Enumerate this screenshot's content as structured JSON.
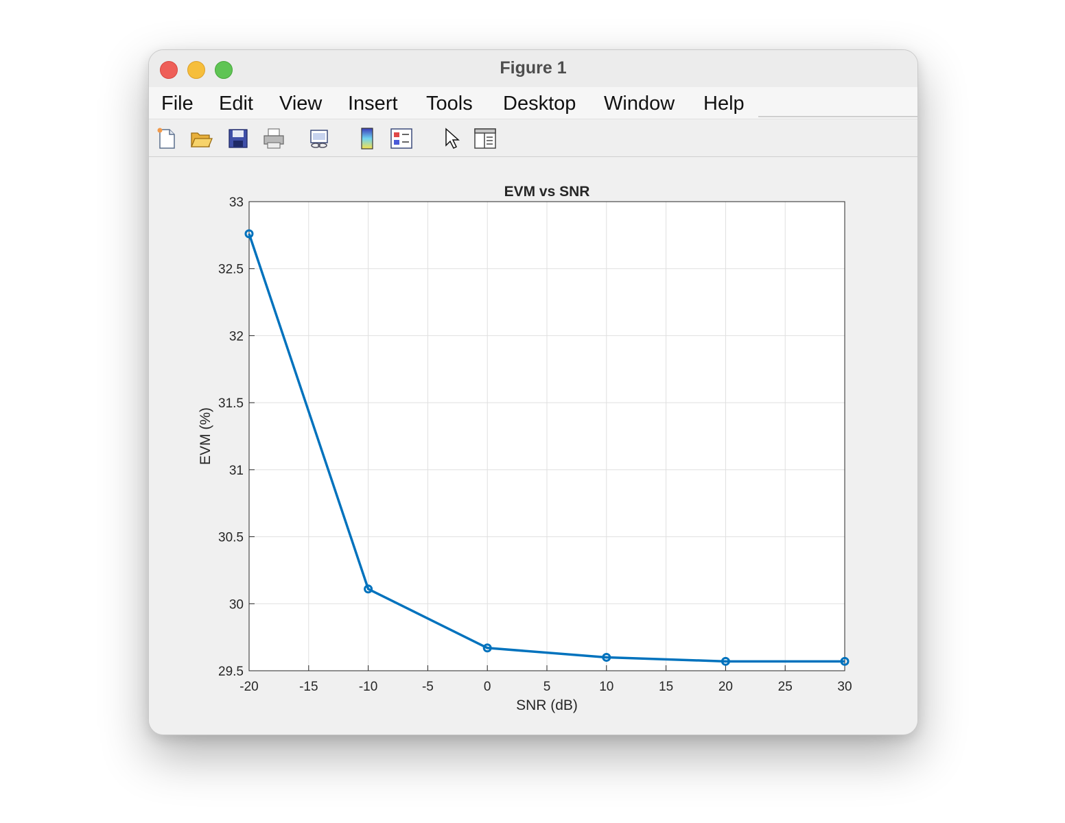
{
  "window": {
    "title": "Figure 1"
  },
  "menu": {
    "items": [
      {
        "label": "File"
      },
      {
        "label": "Edit"
      },
      {
        "label": "View"
      },
      {
        "label": "Insert"
      },
      {
        "label": "Tools"
      },
      {
        "label": "Desktop"
      },
      {
        "label": "Window"
      },
      {
        "label": "Help"
      }
    ]
  },
  "toolbar": {
    "icons": [
      "new-figure-icon",
      "open-file-icon",
      "save-icon",
      "print-icon",
      "link-plot-icon",
      "colorbar-icon",
      "legend-icon",
      "pointer-icon",
      "property-inspector-icon"
    ]
  },
  "colors": {
    "line": "#0072bd",
    "grid": "#dfdfdf",
    "axes_bg": "#ffffff",
    "figure_bg": "#f0f0f0"
  },
  "chart_data": {
    "type": "line",
    "title": "EVM vs SNR",
    "xlabel": "SNR (dB)",
    "ylabel": "EVM (%)",
    "xlim": [
      -20,
      30
    ],
    "ylim": [
      29.5,
      33
    ],
    "xticks": [
      -20,
      -15,
      -10,
      -5,
      0,
      5,
      10,
      15,
      20,
      25,
      30
    ],
    "yticks": [
      29.5,
      30,
      30.5,
      31,
      31.5,
      32,
      32.5,
      33
    ],
    "xtick_labels": [
      "-20",
      "-15",
      "-10",
      "-5",
      "0",
      "5",
      "10",
      "15",
      "20",
      "25",
      "30"
    ],
    "ytick_labels": [
      "29.5",
      "30",
      "30.5",
      "31",
      "31.5",
      "32",
      "32.5",
      "33"
    ],
    "grid": true,
    "marker": "circle",
    "series": [
      {
        "x": [
          -20,
          -10,
          0,
          10,
          20,
          30
        ],
        "y": [
          32.76,
          30.11,
          29.67,
          29.6,
          29.57,
          29.57
        ]
      }
    ]
  }
}
